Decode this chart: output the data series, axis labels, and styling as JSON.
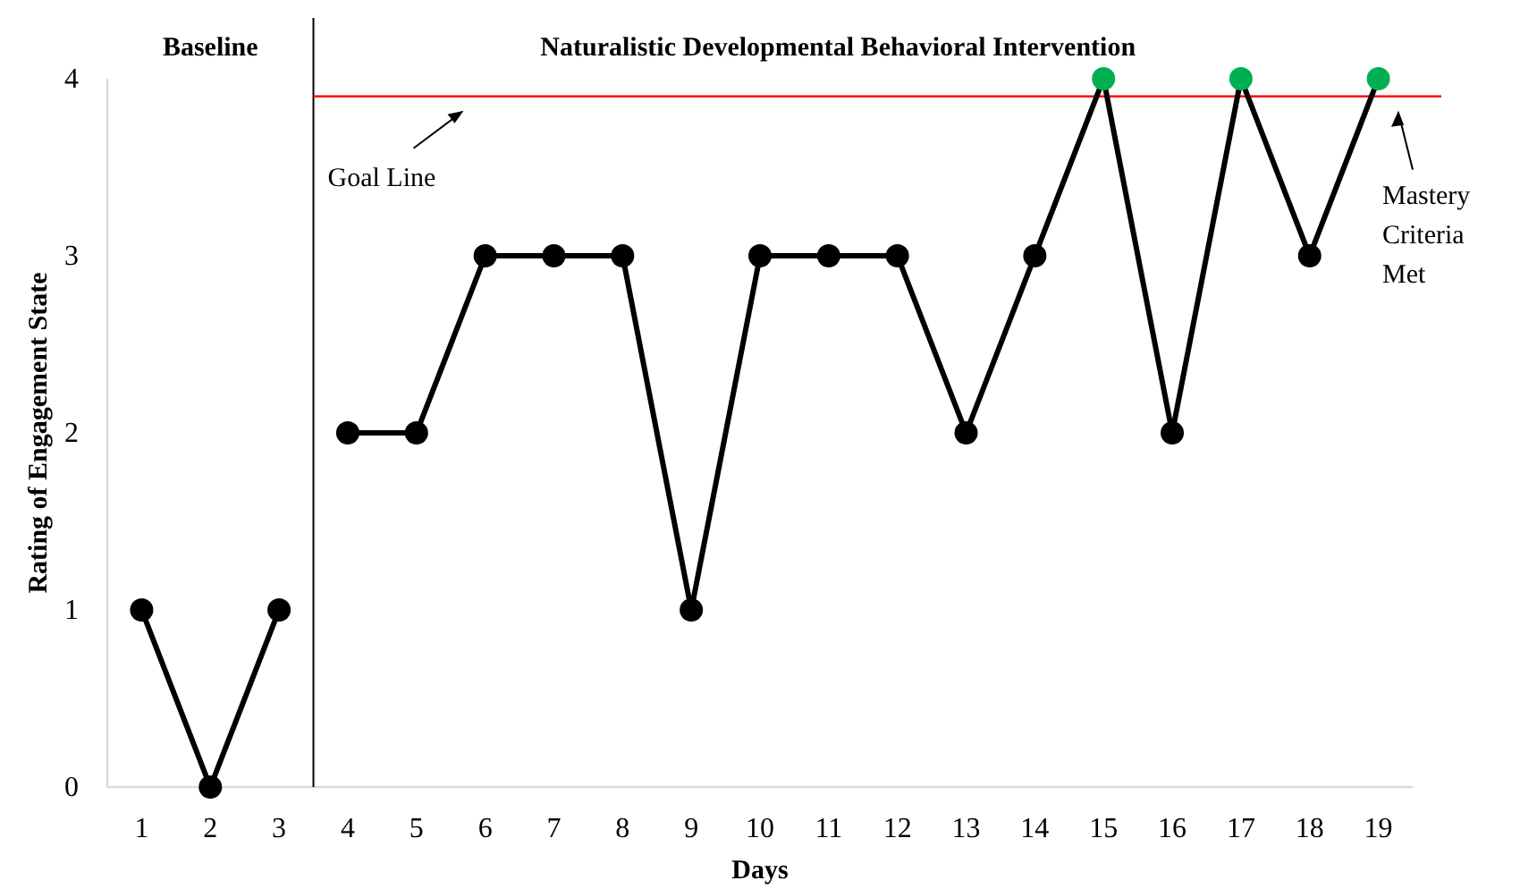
{
  "chart_data": {
    "type": "line",
    "xlabel": "Days",
    "ylabel": "Rating of Engagement State",
    "xlim": [
      0.5,
      19.5
    ],
    "xticks": [
      1,
      2,
      3,
      4,
      5,
      6,
      7,
      8,
      9,
      10,
      11,
      12,
      13,
      14,
      15,
      16,
      17,
      18,
      19
    ],
    "ylim": [
      0,
      4
    ],
    "yticks": [
      0,
      1,
      2,
      3,
      4
    ],
    "grid": false,
    "marker": "circle",
    "line_style": "solid",
    "series": [
      {
        "color": "#000000",
        "x": [
          1,
          2,
          3
        ],
        "values": [
          1,
          0,
          1
        ]
      },
      {
        "color": "#000000",
        "x": [
          4,
          5,
          6,
          7,
          8,
          9,
          10,
          11,
          12,
          13,
          14,
          15,
          16,
          17,
          18,
          19
        ],
        "values": [
          2,
          2,
          3,
          3,
          3,
          1,
          3,
          3,
          3,
          2,
          3,
          4,
          2,
          4,
          3,
          4
        ],
        "colors": [
          "#000000",
          "#000000",
          "#000000",
          "#000000",
          "#000000",
          "#000000",
          "#000000",
          "#000000",
          "#000000",
          "#000000",
          "#000000",
          "#00b050",
          "#000000",
          "#00b050",
          "#000000",
          "#00b050"
        ]
      }
    ],
    "ref_lines": [
      {
        "axis": "x",
        "value": 3.5,
        "color": "#000000"
      },
      {
        "axis": "y",
        "value": 3.9,
        "label": "Goal Line",
        "color": "#ff0000"
      }
    ],
    "annotations": [
      "Baseline",
      "Naturalistic Developmental Behavioral Intervention",
      "Mastery Criteria Met"
    ]
  }
}
